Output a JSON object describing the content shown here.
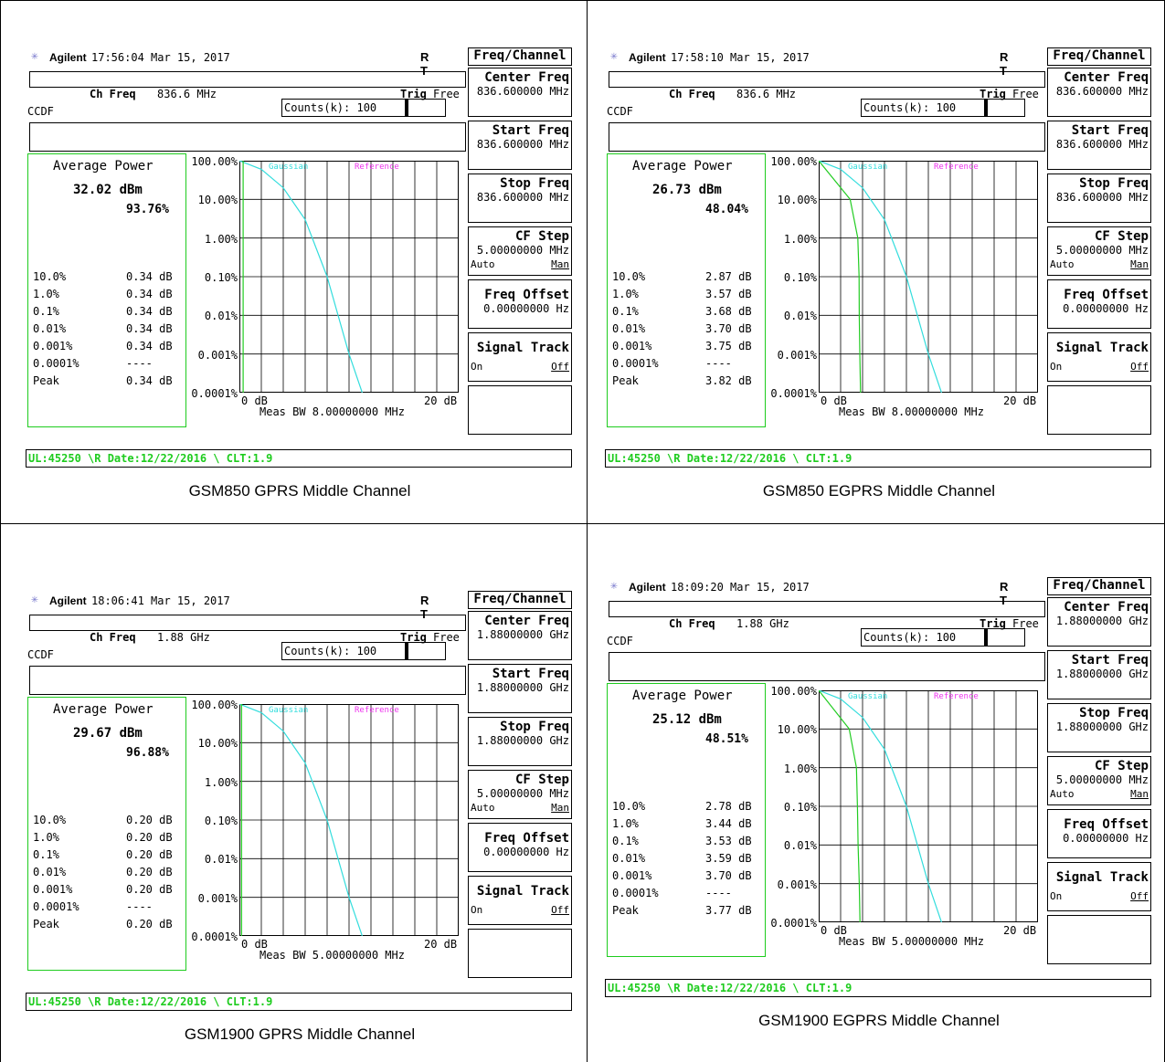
{
  "panels": [
    {
      "brand": "Agilent",
      "time": "17:56:04  Mar 15, 2017",
      "rt": "R T",
      "ch_freq_label": "Ch Freq",
      "ch_freq_value": "836.6 MHz",
      "trig": "Trig",
      "trig_value": "Free",
      "ccdf": "CCDF",
      "counts": "Counts(k): 100",
      "avg_title": "Average Power",
      "avg_dbm": "32.02 dBm",
      "avg_pct": "93.76%",
      "rows": [
        [
          "10.0%",
          "0.34 dB"
        ],
        [
          "1.0%",
          "0.34 dB"
        ],
        [
          "0.1%",
          "0.34 dB"
        ],
        [
          "0.01%",
          "0.34 dB"
        ],
        [
          "0.001%",
          "0.34 dB"
        ],
        [
          "0.0001%",
          "----"
        ],
        [
          "Peak",
          "0.34 dB"
        ]
      ],
      "y_labels": [
        "100.00%",
        "10.00%",
        "1.00%",
        "0.10%",
        "0.01%",
        "0.001%",
        "0.0001%"
      ],
      "legend_gauss": "Gaussian",
      "legend_ref": "Reference",
      "x_start": "0 dB",
      "x_end": "20 dB",
      "meas_bw": "Meas BW    8.00000000 MHz",
      "softkeys": {
        "title": "Freq/Channel",
        "center_freq": "Center Freq",
        "center_freq_val": "836.600000 MHz",
        "start_freq": "Start Freq",
        "start_freq_val": "836.600000 MHz",
        "stop_freq": "Stop Freq",
        "stop_freq_val": "836.600000 MHz",
        "cf_step": "CF Step",
        "cf_step_val": "5.00000000 MHz",
        "auto": "Auto",
        "man": "Man",
        "freq_offset": "Freq Offset",
        "freq_offset_val": "0.00000000  Hz",
        "signal_track": "Signal Track",
        "on": "On",
        "off": "Off"
      },
      "status": "UL:45250 \\R Date:12/22/2016 \\ CLT:1.9",
      "caption": "GSM850 GPRS Middle Channel"
    },
    {
      "brand": "Agilent",
      "time": "17:58:10  Mar 15, 2017",
      "rt": "R T",
      "ch_freq_label": "Ch Freq",
      "ch_freq_value": "836.6 MHz",
      "trig": "Trig",
      "trig_value": "Free",
      "ccdf": "CCDF",
      "counts": "Counts(k): 100",
      "avg_title": "Average Power",
      "avg_dbm": "26.73 dBm",
      "avg_pct": "48.04%",
      "rows": [
        [
          "10.0%",
          "2.87 dB"
        ],
        [
          "1.0%",
          "3.57 dB"
        ],
        [
          "0.1%",
          "3.68 dB"
        ],
        [
          "0.01%",
          "3.70 dB"
        ],
        [
          "0.001%",
          "3.75 dB"
        ],
        [
          "0.0001%",
          "----"
        ],
        [
          "Peak",
          "3.82 dB"
        ]
      ],
      "y_labels": [
        "100.00%",
        "10.00%",
        "1.00%",
        "0.10%",
        "0.01%",
        "0.001%",
        "0.0001%"
      ],
      "legend_gauss": "Gaussian",
      "legend_ref": "Reference",
      "x_start": "0 dB",
      "x_end": "20 dB",
      "meas_bw": "Meas BW    8.00000000 MHz",
      "softkeys": {
        "title": "Freq/Channel",
        "center_freq": "Center Freq",
        "center_freq_val": "836.600000 MHz",
        "start_freq": "Start Freq",
        "start_freq_val": "836.600000 MHz",
        "stop_freq": "Stop Freq",
        "stop_freq_val": "836.600000 MHz",
        "cf_step": "CF Step",
        "cf_step_val": "5.00000000 MHz",
        "auto": "Auto",
        "man": "Man",
        "freq_offset": "Freq Offset",
        "freq_offset_val": "0.00000000  Hz",
        "signal_track": "Signal Track",
        "on": "On",
        "off": "Off"
      },
      "status": "UL:45250 \\R Date:12/22/2016 \\ CLT:1.9",
      "caption": "GSM850 EGPRS Middle Channel"
    },
    {
      "brand": "Agilent",
      "time": "18:06:41  Mar 15, 2017",
      "rt": "R T",
      "ch_freq_label": "Ch Freq",
      "ch_freq_value": "1.88 GHz",
      "trig": "Trig",
      "trig_value": "Free",
      "ccdf": "CCDF",
      "counts": "Counts(k): 100",
      "avg_title": "Average Power",
      "avg_dbm": "29.67 dBm",
      "avg_pct": "96.88%",
      "rows": [
        [
          "10.0%",
          "0.20 dB"
        ],
        [
          "1.0%",
          "0.20 dB"
        ],
        [
          "0.1%",
          "0.20 dB"
        ],
        [
          "0.01%",
          "0.20 dB"
        ],
        [
          "0.001%",
          "0.20 dB"
        ],
        [
          "0.0001%",
          "----"
        ],
        [
          "Peak",
          "0.20 dB"
        ]
      ],
      "y_labels": [
        "100.00%",
        "10.00%",
        "1.00%",
        "0.10%",
        "0.01%",
        "0.001%",
        "0.0001%"
      ],
      "legend_gauss": "Gaussian",
      "legend_ref": "Reference",
      "x_start": "0 dB",
      "x_end": "20 dB",
      "meas_bw": "Meas BW    5.00000000 MHz",
      "softkeys": {
        "title": "Freq/Channel",
        "center_freq": "Center Freq",
        "center_freq_val": "1.88000000 GHz",
        "start_freq": "Start Freq",
        "start_freq_val": "1.88000000 GHz",
        "stop_freq": "Stop Freq",
        "stop_freq_val": "1.88000000 GHz",
        "cf_step": "CF Step",
        "cf_step_val": "5.00000000 MHz",
        "auto": "Auto",
        "man": "Man",
        "freq_offset": "Freq Offset",
        "freq_offset_val": "0.00000000  Hz",
        "signal_track": "Signal Track",
        "on": "On",
        "off": "Off"
      },
      "status": "UL:45250 \\R Date:12/22/2016 \\ CLT:1.9",
      "caption": "GSM1900 GPRS Middle Channel"
    },
    {
      "brand": "Agilent",
      "time": "18:09:20  Mar 15, 2017",
      "rt": "R T",
      "ch_freq_label": "Ch Freq",
      "ch_freq_value": "1.88 GHz",
      "trig": "Trig",
      "trig_value": "Free",
      "ccdf": "CCDF",
      "counts": "Counts(k): 100",
      "avg_title": "Average Power",
      "avg_dbm": "25.12 dBm",
      "avg_pct": "48.51%",
      "rows": [
        [
          "10.0%",
          "2.78 dB"
        ],
        [
          "1.0%",
          "3.44 dB"
        ],
        [
          "0.1%",
          "3.53 dB"
        ],
        [
          "0.01%",
          "3.59 dB"
        ],
        [
          "0.001%",
          "3.70 dB"
        ],
        [
          "0.0001%",
          "----"
        ],
        [
          "Peak",
          "3.77 dB"
        ]
      ],
      "y_labels": [
        "100.00%",
        "10.00%",
        "1.00%",
        "0.10%",
        "0.01%",
        "0.001%",
        "0.0001%"
      ],
      "legend_gauss": "Gaussian",
      "legend_ref": "Reference",
      "x_start": "0 dB",
      "x_end": "20 dB",
      "meas_bw": "Meas BW    5.00000000 MHz",
      "softkeys": {
        "title": "Freq/Channel",
        "center_freq": "Center Freq",
        "center_freq_val": "1.88000000 GHz",
        "start_freq": "Start Freq",
        "start_freq_val": "1.88000000 GHz",
        "stop_freq": "Stop Freq",
        "stop_freq_val": "1.88000000 GHz",
        "cf_step": "CF Step",
        "cf_step_val": "5.00000000 MHz",
        "auto": "Auto",
        "man": "Man",
        "freq_offset": "Freq Offset",
        "freq_offset_val": "0.00000000  Hz",
        "signal_track": "Signal Track",
        "on": "On",
        "off": "Off"
      },
      "status": "UL:45250 \\R Date:12/22/2016 \\ CLT:1.9",
      "caption": "GSM1900 EGPRS Middle Channel"
    }
  ],
  "colors": {
    "gaussian": "#33dddd",
    "reference": "#ee33ee",
    "measured": "#22cc22",
    "status": "#1ecc1e"
  },
  "chart_data": [
    {
      "type": "line",
      "x_unit": "dB",
      "xlim": [
        0,
        20
      ],
      "y_scale": "log",
      "ylim": [
        0.0001,
        100
      ],
      "series": [
        {
          "name": "Gaussian",
          "x": [
            0,
            2,
            4,
            6,
            8,
            10,
            11.2
          ],
          "y": [
            100,
            60,
            20,
            3,
            0.1,
            0.001,
            0.0001
          ]
        },
        {
          "values_note": "",
          "x": [
            0.34,
            0.34
          ],
          "y": [
            100,
            0.0001
          ]
        }
      ]
    },
    {
      "type": "line",
      "x_unit": "dB",
      "xlim": [
        0,
        20
      ],
      "y_scale": "log",
      "ylim": [
        0.0001,
        100
      ],
      "series": [
        {
          "name": "Gaussian",
          "x": [
            0,
            2,
            4,
            6,
            8,
            10,
            11.2
          ],
          "y": [
            100,
            60,
            20,
            3,
            0.1,
            0.001,
            0.0001
          ]
        },
        {
          "x": [
            0,
            2.87,
            3.57,
            3.68,
            3.7,
            3.75,
            3.82
          ],
          "y": [
            100,
            10,
            1,
            0.1,
            0.01,
            0.001,
            0.0001
          ]
        }
      ]
    },
    {
      "type": "line",
      "x_unit": "dB",
      "xlim": [
        0,
        20
      ],
      "y_scale": "log",
      "ylim": [
        0.0001,
        100
      ],
      "series": [
        {
          "name": "Gaussian",
          "x": [
            0,
            2,
            4,
            6,
            8,
            10,
            11.2
          ],
          "y": [
            100,
            60,
            20,
            3,
            0.1,
            0.001,
            0.0001
          ]
        },
        {
          "x": [
            0.2,
            0.2
          ],
          "y": [
            100,
            0.0001
          ]
        }
      ]
    },
    {
      "type": "line",
      "x_unit": "dB",
      "xlim": [
        0,
        20
      ],
      "y_scale": "log",
      "ylim": [
        0.0001,
        100
      ],
      "series": [
        {
          "name": "Gaussian",
          "x": [
            0,
            2,
            4,
            6,
            8,
            10,
            11.2
          ],
          "y": [
            100,
            60,
            20,
            3,
            0.1,
            0.001,
            0.0001
          ]
        },
        {
          "x": [
            0,
            2.78,
            3.44,
            3.53,
            3.59,
            3.7,
            3.77
          ],
          "y": [
            100,
            10,
            1,
            0.1,
            0.01,
            0.001,
            0.0001
          ]
        }
      ]
    }
  ]
}
